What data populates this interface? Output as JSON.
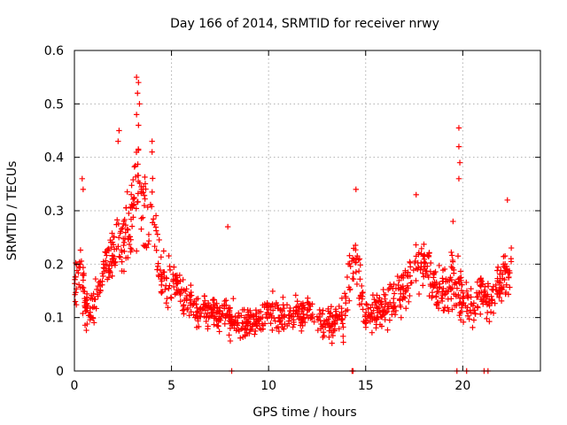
{
  "chart_data": {
    "type": "scatter",
    "title": "Day 166 of 2014, SRMTID for receiver nrwy",
    "xlabel": "GPS time / hours",
    "ylabel": "SRMTID / TECUs",
    "xlim": [
      0,
      24
    ],
    "ylim": [
      0,
      0.6
    ],
    "grid": true,
    "marker": "plus",
    "color": "#ff0000",
    "x_ticks": [
      0,
      5,
      10,
      15,
      20
    ],
    "y_ticks": [
      0,
      0.1,
      0.2,
      0.3,
      0.4,
      0.5,
      0.6
    ],
    "x_tick_labels": [
      "0",
      "5",
      "10",
      "15",
      "20"
    ],
    "y_tick_labels": [
      "0",
      "0.1",
      "0.2",
      "0.3",
      "0.4",
      "0.5",
      "0.6"
    ],
    "trend": [
      [
        0.0,
        0.15,
        0.05
      ],
      [
        0.3,
        0.2,
        0.06
      ],
      [
        0.6,
        0.11,
        0.04
      ],
      [
        1.0,
        0.12,
        0.04
      ],
      [
        1.5,
        0.19,
        0.05
      ],
      [
        2.0,
        0.22,
        0.06
      ],
      [
        2.5,
        0.24,
        0.07
      ],
      [
        3.0,
        0.3,
        0.09
      ],
      [
        3.3,
        0.36,
        0.1
      ],
      [
        3.7,
        0.3,
        0.09
      ],
      [
        4.0,
        0.28,
        0.09
      ],
      [
        4.5,
        0.17,
        0.06
      ],
      [
        5.0,
        0.17,
        0.05
      ],
      [
        5.5,
        0.15,
        0.05
      ],
      [
        6.0,
        0.12,
        0.04
      ],
      [
        7.0,
        0.11,
        0.035
      ],
      [
        8.0,
        0.1,
        0.035
      ],
      [
        9.0,
        0.09,
        0.03
      ],
      [
        10.0,
        0.11,
        0.035
      ],
      [
        11.0,
        0.1,
        0.035
      ],
      [
        12.0,
        0.11,
        0.035
      ],
      [
        13.0,
        0.09,
        0.035
      ],
      [
        13.8,
        0.1,
        0.04
      ],
      [
        14.2,
        0.2,
        0.07
      ],
      [
        14.6,
        0.18,
        0.06
      ],
      [
        15.0,
        0.1,
        0.03
      ],
      [
        15.5,
        0.11,
        0.035
      ],
      [
        16.0,
        0.12,
        0.04
      ],
      [
        17.0,
        0.15,
        0.05
      ],
      [
        17.5,
        0.2,
        0.05
      ],
      [
        18.0,
        0.2,
        0.05
      ],
      [
        18.5,
        0.16,
        0.05
      ],
      [
        19.0,
        0.15,
        0.05
      ],
      [
        19.5,
        0.17,
        0.06
      ],
      [
        20.0,
        0.14,
        0.05
      ],
      [
        20.5,
        0.12,
        0.04
      ],
      [
        21.0,
        0.15,
        0.05
      ],
      [
        21.5,
        0.13,
        0.04
      ],
      [
        22.0,
        0.17,
        0.05
      ],
      [
        22.5,
        0.2,
        0.05
      ]
    ],
    "density_points_per_hour": 55,
    "highlights": [
      [
        3.2,
        0.55
      ],
      [
        3.3,
        0.54
      ],
      [
        3.25,
        0.52
      ],
      [
        3.35,
        0.5
      ],
      [
        3.2,
        0.48
      ],
      [
        3.3,
        0.46
      ],
      [
        2.3,
        0.45
      ],
      [
        2.25,
        0.43
      ],
      [
        4.0,
        0.43
      ],
      [
        4.0,
        0.41
      ],
      [
        0.4,
        0.36
      ],
      [
        0.45,
        0.34
      ],
      [
        19.8,
        0.455
      ],
      [
        19.8,
        0.42
      ],
      [
        19.85,
        0.39
      ],
      [
        19.8,
        0.36
      ],
      [
        14.5,
        0.34
      ],
      [
        17.6,
        0.33
      ],
      [
        22.3,
        0.32
      ],
      [
        7.9,
        0.27
      ],
      [
        19.5,
        0.28
      ]
    ],
    "zero_points": [
      8.1,
      14.3,
      14.35,
      19.7,
      20.2,
      21.1,
      21.3
    ]
  }
}
